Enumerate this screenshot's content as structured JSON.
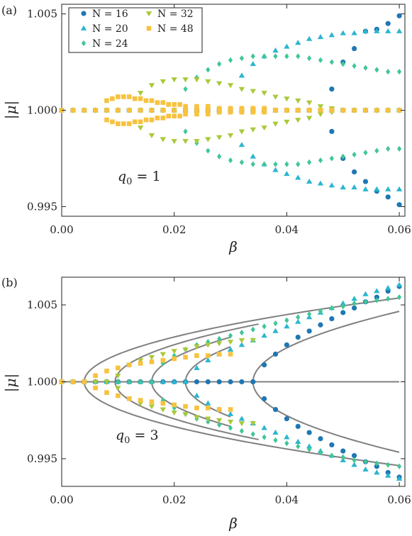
{
  "colors": {
    "N16": "#1f77b4",
    "N20": "#2bb6cf",
    "N24": "#3fc796",
    "N32": "#a9c93a",
    "N48": "#f7c23f",
    "curve": "#808080"
  },
  "legend": [
    {
      "key": "N16",
      "label": "N = 16",
      "marker": "circle"
    },
    {
      "key": "N20",
      "label": "N = 20",
      "marker": "triangle-up"
    },
    {
      "key": "N24",
      "label": "N = 24",
      "marker": "diamond"
    },
    {
      "key": "N32",
      "label": "N = 32",
      "marker": "triangle-down"
    },
    {
      "key": "N48",
      "label": "N = 48",
      "marker": "square"
    }
  ],
  "chart_data": [
    {
      "type": "scatter",
      "panel_label": "(a)",
      "annotation": "q0 = 1",
      "xlabel": "β",
      "ylabel": "|μ|",
      "xlim": [
        0,
        0.061
      ],
      "ylim": [
        0.9945,
        1.0055
      ],
      "xticks": [
        "0.00",
        "0.02",
        "0.04",
        "0.06"
      ],
      "yticks": [
        "0.995",
        "1.000",
        "1.005"
      ],
      "legend_position": "top-left",
      "series": [
        {
          "key": "N16",
          "x": [
            0.048,
            0.05,
            0.052,
            0.054,
            0.056,
            0.058,
            0.06
          ],
          "upper": [
            1.0011,
            1.0025,
            1.0032,
            1.0041,
            1.0042,
            1.0045,
            1.0049
          ],
          "lower": [
            0.9989,
            0.9975,
            0.9968,
            0.9963,
            0.9958,
            0.9955,
            0.9951
          ],
          "base_from": 0.0
        },
        {
          "key": "N20",
          "x": [
            0.032,
            0.034,
            0.036,
            0.038,
            0.04,
            0.042,
            0.044,
            0.046,
            0.048,
            0.05,
            0.052,
            0.054,
            0.056,
            0.058,
            0.06
          ],
          "upper": [
            1.0018,
            1.0024,
            1.0028,
            1.0031,
            1.0033,
            1.0035,
            1.0037,
            1.0038,
            1.0039,
            1.004,
            1.004,
            1.0041,
            1.0041,
            1.0041,
            1.0041
          ],
          "lower": [
            0.9982,
            0.9976,
            0.9972,
            0.9969,
            0.9967,
            0.9965,
            0.9963,
            0.9962,
            0.9961,
            0.996,
            0.996,
            0.9959,
            0.9959,
            0.9959,
            0.9959
          ],
          "base_from": 0.0
        },
        {
          "key": "N24",
          "x": [
            0.022,
            0.024,
            0.026,
            0.028,
            0.03,
            0.032,
            0.034,
            0.036,
            0.038,
            0.04,
            0.042,
            0.044,
            0.046,
            0.048,
            0.05,
            0.052,
            0.054,
            0.056,
            0.058,
            0.06
          ],
          "upper": [
            1.0011,
            1.0017,
            1.0021,
            1.0024,
            1.0026,
            1.0027,
            1.0028,
            1.0028,
            1.0028,
            1.0028,
            1.0028,
            1.0027,
            1.0026,
            1.0025,
            1.0024,
            1.0023,
            1.0022,
            1.0021,
            1.002,
            1.002
          ],
          "lower": [
            0.9989,
            0.9983,
            0.9979,
            0.9976,
            0.9974,
            0.9973,
            0.9972,
            0.9972,
            0.9972,
            0.9972,
            0.9972,
            0.9973,
            0.9974,
            0.9975,
            0.9976,
            0.9977,
            0.9978,
            0.9979,
            0.998,
            0.998
          ],
          "base_from": 0.0
        },
        {
          "key": "N32",
          "x": [
            0.014,
            0.016,
            0.018,
            0.02,
            0.022,
            0.024,
            0.026,
            0.028,
            0.03,
            0.032,
            0.034,
            0.036,
            0.038,
            0.04,
            0.042,
            0.044,
            0.046,
            0.048,
            0.05
          ],
          "upper": [
            1.0009,
            1.0013,
            1.0015,
            1.0016,
            1.0016,
            1.0016,
            1.0015,
            1.0014,
            1.0013,
            1.0011,
            1.001,
            1.0009,
            1.0007,
            1.0006,
            1.0005,
            1.0004,
            1.0002,
            1.0001,
            1.0
          ],
          "lower": [
            0.9991,
            0.9987,
            0.9985,
            0.9984,
            0.9984,
            0.9984,
            0.9985,
            0.9986,
            0.9987,
            0.9989,
            0.999,
            0.9991,
            0.9993,
            0.9994,
            0.9995,
            0.9996,
            0.9998,
            0.9999,
            1.0
          ],
          "base_from": 0.0
        },
        {
          "key": "N48",
          "x": [
            0.008,
            0.009,
            0.01,
            0.011,
            0.012,
            0.013,
            0.014,
            0.015,
            0.016,
            0.017,
            0.018,
            0.019,
            0.02,
            0.021,
            0.022,
            0.024,
            0.026,
            0.028,
            0.03,
            0.032,
            0.034,
            0.036,
            0.038,
            0.04,
            0.042,
            0.044,
            0.046,
            0.048
          ],
          "upper": [
            1.0005,
            1.0006,
            1.0007,
            1.0007,
            1.0007,
            1.0006,
            1.0006,
            1.0005,
            1.0005,
            1.0004,
            1.0004,
            1.0003,
            1.0003,
            1.0003,
            1.0002,
            1.0002,
            1.0002,
            1.0001,
            1.0001,
            1.0001,
            1.0001,
            1.0001,
            1.0,
            1.0,
            1.0,
            1.0,
            1.0,
            1.0
          ],
          "lower": [
            0.9995,
            0.9994,
            0.9993,
            0.9993,
            0.9993,
            0.9994,
            0.9994,
            0.9995,
            0.9995,
            0.9996,
            0.9996,
            0.9997,
            0.9997,
            0.9997,
            0.9998,
            0.9998,
            0.9998,
            0.9999,
            0.9999,
            0.9999,
            0.9999,
            0.9999,
            1.0,
            1.0,
            1.0,
            1.0,
            1.0,
            1.0
          ],
          "base_from": 0.0
        }
      ]
    },
    {
      "type": "scatter",
      "panel_label": "(b)",
      "annotation": "q0 = 3",
      "xlabel": "β",
      "ylabel": "|μ|",
      "xlim": [
        0,
        0.061
      ],
      "ylim": [
        0.9932,
        1.0068
      ],
      "xticks": [
        "0.00",
        "0.02",
        "0.04",
        "0.06"
      ],
      "yticks": [
        "0.995",
        "1.000",
        "1.005"
      ],
      "curves": [
        {
          "beta_c": 0.034,
          "a": 0.0058,
          "x_end": 0.06
        },
        {
          "beta_c": 0.022,
          "a": 0.0052,
          "x_end": 0.03
        },
        {
          "beta_c": 0.016,
          "a": 0.005,
          "x_end": 0.03
        },
        {
          "beta_c": 0.0095,
          "a": 0.0048,
          "x_end": 0.035
        },
        {
          "beta_c": 0.004,
          "a": 0.0047,
          "x_end": 0.06
        }
      ],
      "series": [
        {
          "key": "N16",
          "x": [
            0.034,
            0.036,
            0.038,
            0.04,
            0.042,
            0.044,
            0.046,
            0.048,
            0.05,
            0.052,
            0.054,
            0.056,
            0.058,
            0.06
          ],
          "upper": [
            1.0,
            1.0011,
            1.0018,
            1.0024,
            1.0029,
            1.0033,
            1.0037,
            1.0041,
            1.0045,
            1.0048,
            1.0052,
            1.0055,
            1.0059,
            1.0062
          ],
          "lower": [
            1.0,
            0.9989,
            0.9982,
            0.9976,
            0.9971,
            0.9967,
            0.9963,
            0.9959,
            0.9955,
            0.9952,
            0.9948,
            0.9945,
            0.9941,
            0.9938
          ],
          "base_from": 0.0
        },
        {
          "key": "N20",
          "x": [
            0.022,
            0.024,
            0.026,
            0.028,
            0.03,
            0.032,
            0.034,
            0.036,
            0.038,
            0.04,
            0.042,
            0.044,
            0.046,
            0.048,
            0.05,
            0.052,
            0.054,
            0.056,
            0.058,
            0.06
          ],
          "upper": [
            1.0,
            1.0009,
            1.0014,
            1.0018,
            1.0021,
            1.0024,
            1.0027,
            1.003,
            1.0033,
            1.0036,
            1.0039,
            1.0042,
            1.0045,
            1.0048,
            1.0051,
            1.0054,
            1.0057,
            1.0059,
            1.0061,
            1.0063
          ],
          "lower": [
            1.0,
            0.9991,
            0.9986,
            0.9982,
            0.9979,
            0.9976,
            0.9973,
            0.997,
            0.9967,
            0.9964,
            0.9961,
            0.9958,
            0.9955,
            0.9952,
            0.9949,
            0.9946,
            0.9943,
            0.9941,
            0.9939,
            0.9937
          ],
          "base_from": 0.0
        },
        {
          "key": "N24",
          "x": [
            0.016,
            0.018,
            0.02,
            0.022,
            0.024,
            0.026,
            0.028,
            0.03,
            0.032,
            0.034,
            0.036,
            0.038,
            0.04,
            0.042,
            0.044,
            0.046,
            0.048,
            0.05,
            0.052,
            0.054,
            0.056,
            0.058,
            0.06
          ],
          "upper": [
            1.0,
            1.0012,
            1.0017,
            1.0021,
            1.0024,
            1.0026,
            1.0028,
            1.003,
            1.0032,
            1.0034,
            1.0036,
            1.0038,
            1.004,
            1.0042,
            1.0044,
            1.0046,
            1.0048,
            1.0049,
            1.0051,
            1.0052,
            1.0053,
            1.0054,
            1.0055
          ],
          "lower": [
            1.0,
            0.9988,
            0.9983,
            0.9979,
            0.9976,
            0.9974,
            0.9972,
            0.997,
            0.9968,
            0.9966,
            0.9964,
            0.9962,
            0.996,
            0.9958,
            0.9956,
            0.9954,
            0.9952,
            0.9951,
            0.9949,
            0.9948,
            0.9947,
            0.9946,
            0.9945
          ],
          "base_from": 0.0
        },
        {
          "key": "N32",
          "x": [
            0.01,
            0.012,
            0.014,
            0.016,
            0.018,
            0.02,
            0.022,
            0.024,
            0.026,
            0.028,
            0.03,
            0.032,
            0.034
          ],
          "upper": [
            1.0004,
            1.0011,
            1.0014,
            1.0016,
            1.0018,
            1.002,
            1.0021,
            1.0023,
            1.0024,
            1.0025,
            1.0026,
            1.0027,
            1.0027
          ],
          "lower": [
            0.9996,
            0.9989,
            0.9986,
            0.9984,
            0.9982,
            0.998,
            0.9979,
            0.9977,
            0.9976,
            0.9975,
            0.9974,
            0.9973,
            0.9973
          ],
          "base_from": 0.0
        },
        {
          "key": "N48",
          "x": [
            0.004,
            0.006,
            0.008,
            0.01,
            0.012,
            0.014,
            0.016,
            0.018,
            0.02,
            0.022,
            0.024,
            0.026,
            0.028,
            0.03
          ],
          "upper": [
            1.0,
            1.0004,
            1.0007,
            1.0009,
            1.0011,
            1.0012,
            1.0013,
            1.0014,
            1.0015,
            1.0016,
            1.0017,
            1.0017,
            1.0018,
            1.0018
          ],
          "lower": [
            1.0,
            0.9996,
            0.9993,
            0.9991,
            0.9989,
            0.9988,
            0.9987,
            0.9986,
            0.9985,
            0.9984,
            0.9983,
            0.9983,
            0.9982,
            0.9982
          ],
          "base_from": 0.0
        }
      ]
    }
  ]
}
